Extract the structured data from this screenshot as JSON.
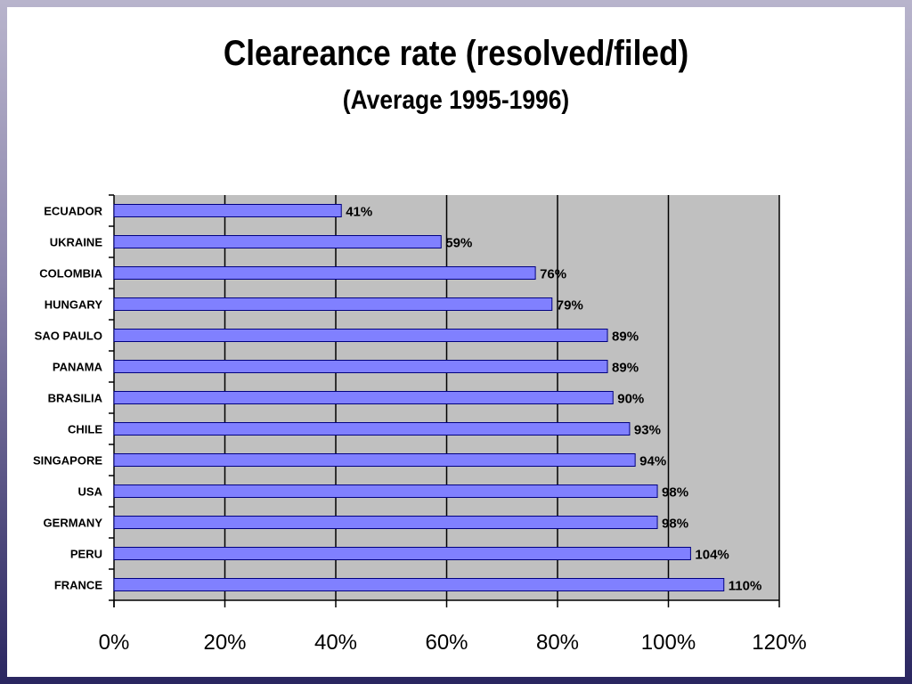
{
  "chart_data": {
    "type": "bar",
    "orientation": "horizontal",
    "title": "Cleareance rate (resolved/filed)",
    "subtitle": "(Average 1995-1996)",
    "categories": [
      "ECUADOR",
      "UKRAINE",
      "COLOMBIA",
      "HUNGARY",
      "SAO PAULO",
      "PANAMA",
      "BRASILIA",
      "CHILE",
      "SINGAPORE",
      "USA",
      "GERMANY",
      "PERU",
      "FRANCE"
    ],
    "values": [
      41,
      59,
      76,
      79,
      89,
      89,
      90,
      93,
      94,
      98,
      98,
      104,
      110
    ],
    "data_labels": [
      "41%",
      "59%",
      "76%",
      "79%",
      "89%",
      "89%",
      "90%",
      "93%",
      "94%",
      "98%",
      "98%",
      "104%",
      "110%"
    ],
    "xlim": [
      0,
      120
    ],
    "xticks": [
      "0%",
      "20%",
      "40%",
      "60%",
      "80%",
      "100%",
      "120%"
    ],
    "grid": true,
    "colors": {
      "bar": "#8080ff",
      "bar_edge": "#000080",
      "plot_bg": "#c0c0c0",
      "gridline": "#000000"
    }
  }
}
